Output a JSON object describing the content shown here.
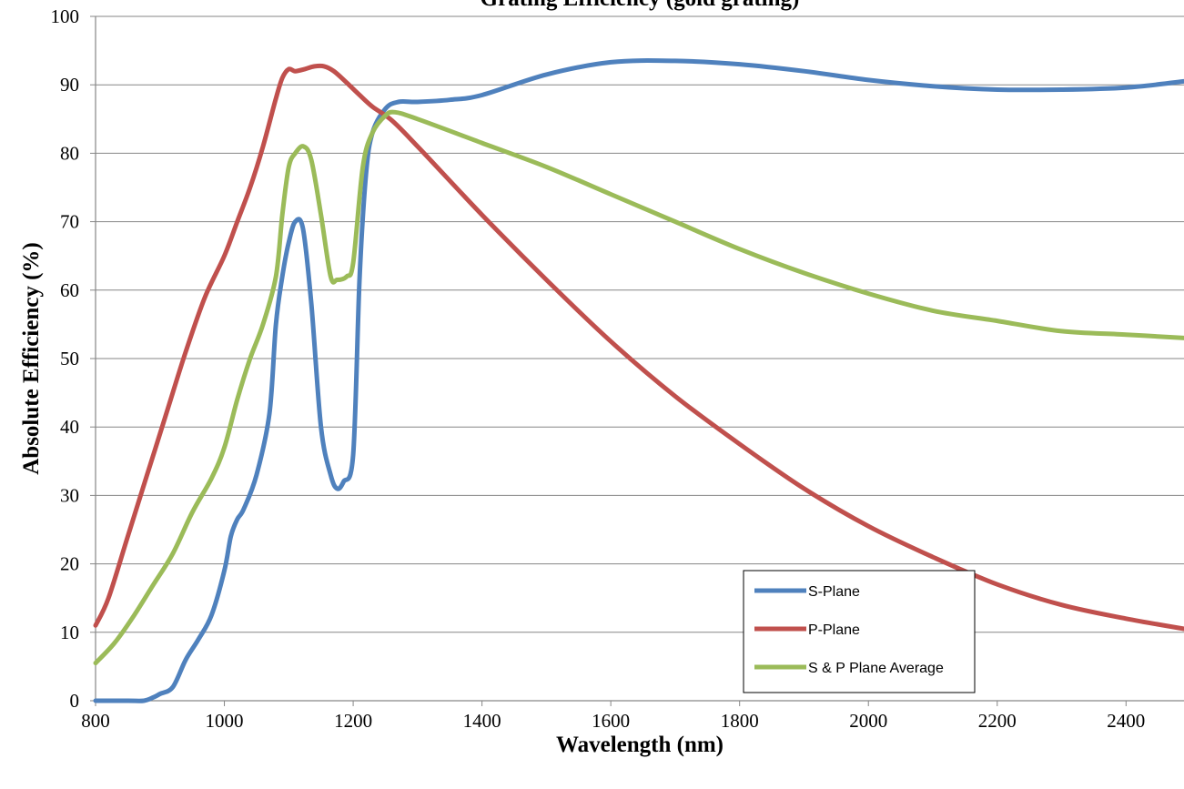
{
  "chart_data": {
    "type": "line",
    "title": "Grating Efficiency (gold grating)",
    "xlabel": "Wavelength (nm)",
    "ylabel": "Absolute Efficiency (%)",
    "xlim": [
      800,
      2490
    ],
    "ylim": [
      0,
      100
    ],
    "x_ticks": [
      800,
      1000,
      1200,
      1400,
      1600,
      1800,
      2000,
      2200,
      2400
    ],
    "y_ticks": [
      0,
      10,
      20,
      30,
      40,
      50,
      60,
      70,
      80,
      90,
      100
    ],
    "grid": "horizontal",
    "legend_position": "bottom-right",
    "series": [
      {
        "name": "S-Plane",
        "color": "#4f81bd",
        "x": [
          800,
          850,
          875,
          890,
          900,
          920,
          940,
          960,
          980,
          1000,
          1010,
          1020,
          1030,
          1050,
          1070,
          1080,
          1090,
          1100,
          1110,
          1122,
          1135,
          1150,
          1165,
          1175,
          1185,
          1200,
          1210,
          1220,
          1230,
          1250,
          1270,
          1300,
          1350,
          1400,
          1500,
          1600,
          1700,
          1800,
          1900,
          2000,
          2100,
          2200,
          2300,
          2400,
          2490
        ],
        "y": [
          0,
          0,
          0,
          0.5,
          1,
          2,
          6,
          9,
          12.5,
          19,
          24,
          26.5,
          28,
          33,
          42,
          55,
          62,
          67,
          70,
          69,
          58,
          40,
          33,
          31,
          32,
          36,
          62,
          77,
          83,
          86.5,
          87.5,
          87.5,
          87.8,
          88.5,
          91.5,
          93.3,
          93.5,
          93,
          92,
          90.7,
          89.8,
          89.3,
          89.3,
          89.6,
          90.5
        ]
      },
      {
        "name": "P-Plane",
        "color": "#c0504d",
        "x": [
          800,
          820,
          850,
          880,
          910,
          940,
          970,
          1000,
          1020,
          1040,
          1060,
          1080,
          1090,
          1100,
          1110,
          1125,
          1140,
          1155,
          1170,
          1190,
          1210,
          1230,
          1260,
          1300,
          1400,
          1500,
          1600,
          1700,
          1800,
          1900,
          2000,
          2100,
          2200,
          2300,
          2400,
          2490
        ],
        "y": [
          11,
          15,
          24,
          33,
          42,
          51,
          59,
          65,
          70,
          75,
          81,
          88,
          91,
          92.3,
          92,
          92.3,
          92.7,
          92.7,
          92,
          90.3,
          88.5,
          86.8,
          84.8,
          81,
          71,
          61.5,
          52.5,
          44.5,
          37.5,
          31,
          25.5,
          21,
          17,
          14,
          12,
          10.5
        ]
      },
      {
        "name": "S & P Plane Average",
        "color": "#9bbb59",
        "x": [
          800,
          830,
          860,
          890,
          920,
          950,
          980,
          1000,
          1020,
          1040,
          1060,
          1080,
          1090,
          1100,
          1110,
          1123,
          1135,
          1150,
          1165,
          1175,
          1190,
          1200,
          1215,
          1230,
          1250,
          1265,
          1300,
          1400,
          1500,
          1600,
          1700,
          1800,
          1900,
          2000,
          2100,
          2200,
          2300,
          2400,
          2490
        ],
        "y": [
          5.5,
          8.5,
          12.5,
          17,
          21.5,
          27.5,
          32.5,
          37,
          44,
          50,
          55,
          62,
          71,
          78,
          80,
          81,
          79,
          71,
          62,
          61.5,
          62,
          64,
          78,
          83,
          85.5,
          86,
          85,
          81.5,
          78,
          74,
          70,
          66,
          62.5,
          59.5,
          57,
          55.5,
          54,
          53.5,
          53
        ]
      }
    ]
  }
}
